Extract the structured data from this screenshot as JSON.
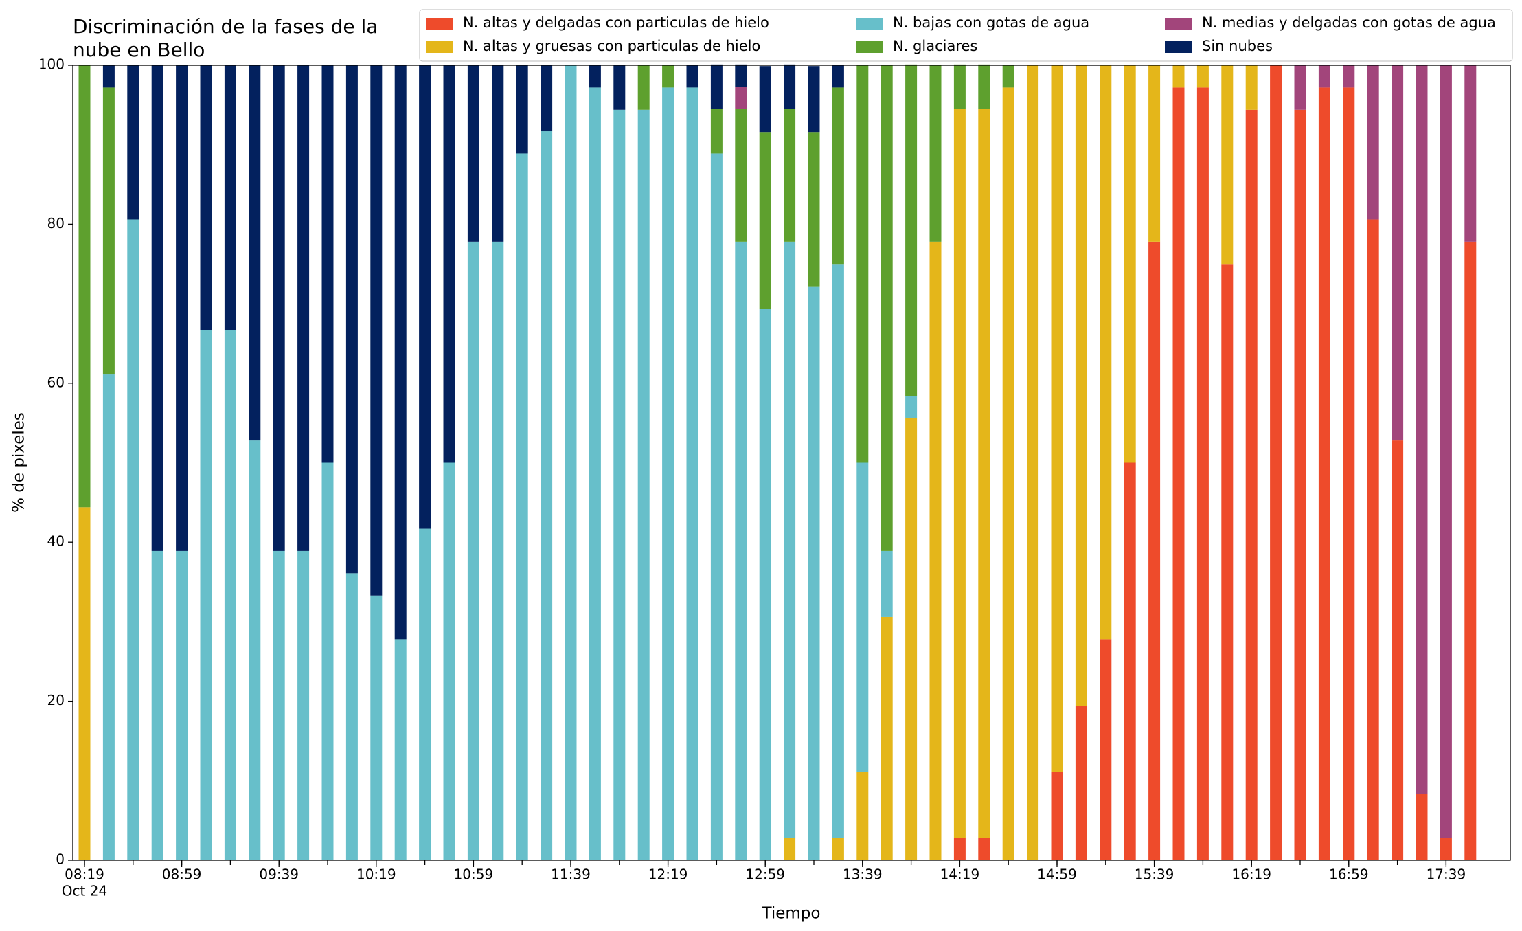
{
  "chart_data": {
    "type": "stacked_bar",
    "title": [
      "Discriminación de la fases de la",
      "nube en Bello"
    ],
    "x_label": "Tiempo",
    "y_label": "% de pixeles",
    "x_date_label": "Oct 24",
    "categories": [
      "08:19",
      null,
      null,
      null,
      "08:59",
      null,
      null,
      null,
      "09:39",
      null,
      null,
      null,
      "10:19",
      null,
      null,
      null,
      "10:59",
      null,
      null,
      null,
      "11:39",
      null,
      null,
      null,
      "12:19",
      null,
      null,
      null,
      "12:59",
      null,
      null,
      null,
      "13:39",
      null,
      null,
      null,
      "14:19",
      null,
      null,
      null,
      "14:59",
      null,
      null,
      null,
      "15:39",
      null,
      null,
      null,
      "16:19",
      null,
      null,
      null,
      "16:59",
      null,
      null,
      null,
      "17:39",
      null
    ],
    "ylim": [
      0,
      100
    ],
    "yticks": [
      0,
      20,
      40,
      60,
      80,
      100
    ],
    "legend": "top right",
    "series": [
      {
        "name": "N. altas y delgadas con particulas de hielo",
        "color": "#ee4b2b",
        "values": [
          0,
          0,
          0,
          0,
          0,
          0,
          0,
          0,
          0,
          0,
          0,
          0,
          0,
          0,
          0,
          0,
          0,
          0,
          0,
          0,
          0,
          0,
          0,
          0,
          0,
          0,
          0,
          0,
          0,
          0,
          0,
          0,
          0,
          0,
          0,
          0,
          2.8,
          2.8,
          0,
          0,
          11.1,
          19.4,
          27.8,
          50,
          77.8,
          97.2,
          97.2,
          75,
          94.4,
          100,
          94.4,
          97.2,
          97.2,
          80.6,
          52.8,
          8.3,
          2.8,
          77.8
        ]
      },
      {
        "name": "N. altas y gruesas con particulas de hielo",
        "color": "#e4b61a",
        "values": [
          44.4,
          0,
          0,
          0,
          0,
          0,
          0,
          0,
          0,
          0,
          0,
          0,
          0,
          0,
          0,
          0,
          0,
          0,
          0,
          0,
          0,
          0,
          0,
          0,
          0,
          0,
          0,
          0,
          0,
          2.8,
          0,
          2.8,
          11.1,
          30.6,
          55.6,
          77.8,
          91.7,
          91.7,
          97.2,
          100,
          88.9,
          80.6,
          72.2,
          50,
          22.2,
          2.8,
          2.8,
          25,
          5.6,
          0,
          0,
          0,
          0,
          0,
          0,
          0,
          0,
          0
        ]
      },
      {
        "name": "N. bajas con gotas de agua",
        "color": "#67bfca",
        "values": [
          0,
          61.1,
          80.6,
          38.9,
          38.9,
          66.7,
          66.7,
          52.8,
          38.9,
          38.9,
          50,
          36.1,
          33.3,
          27.8,
          41.7,
          50,
          77.8,
          77.8,
          88.9,
          91.7,
          100,
          97.2,
          94.4,
          94.4,
          97.2,
          97.2,
          88.9,
          77.8,
          69.4,
          75,
          72.2,
          72.2,
          38.9,
          8.3,
          2.8,
          0,
          0,
          0,
          0,
          0,
          0,
          0,
          0,
          0,
          0,
          0,
          0,
          0,
          0,
          0,
          0,
          0,
          0,
          0,
          0,
          0,
          0,
          0
        ]
      },
      {
        "name": "N. glaciares",
        "color": "#5ea02e",
        "values": [
          55.6,
          36.1,
          0,
          0,
          0,
          0,
          0,
          0,
          0,
          0,
          0,
          0,
          0,
          0,
          0,
          0,
          0,
          0,
          0,
          0,
          0,
          0,
          0,
          5.6,
          2.8,
          0,
          5.6,
          16.7,
          22.2,
          16.7,
          19.4,
          22.2,
          50,
          61.1,
          41.7,
          22.2,
          5.6,
          5.6,
          2.8,
          0,
          0,
          0,
          0,
          0,
          0,
          0,
          0,
          0,
          0,
          0,
          0,
          0,
          0,
          0,
          0,
          0,
          0,
          0
        ]
      },
      {
        "name": "N. medias y delgadas con gotas de agua",
        "color": "#a2457b",
        "values": [
          0,
          0,
          0,
          0,
          0,
          0,
          0,
          0,
          0,
          0,
          0,
          0,
          0,
          0,
          0,
          0,
          0,
          0,
          0,
          0,
          0,
          0,
          0,
          0,
          0,
          0,
          0,
          2.8,
          0,
          0,
          0,
          0,
          0,
          0,
          0,
          0,
          0,
          0,
          0,
          0,
          0,
          0,
          0,
          0,
          0,
          0,
          0,
          0,
          0,
          0,
          5.6,
          2.8,
          2.8,
          19.4,
          47.2,
          91.7,
          97.2,
          22.2
        ]
      },
      {
        "name": "Sin nubes",
        "color": "#03215e",
        "values": [
          0,
          2.8,
          19.4,
          61.1,
          61.1,
          33.3,
          33.3,
          47.2,
          61.1,
          61.1,
          50,
          63.9,
          66.7,
          72.2,
          58.3,
          50,
          22.2,
          22.2,
          11.1,
          8.3,
          0,
          2.8,
          5.6,
          0,
          0,
          2.8,
          5.6,
          2.8,
          8.3,
          5.6,
          8.3,
          2.8,
          0,
          0,
          0,
          0,
          0,
          0,
          0,
          0,
          0,
          0,
          0,
          0,
          0,
          0,
          0,
          0,
          0,
          0,
          0,
          0,
          0,
          0,
          0,
          0,
          0,
          0
        ]
      }
    ]
  }
}
